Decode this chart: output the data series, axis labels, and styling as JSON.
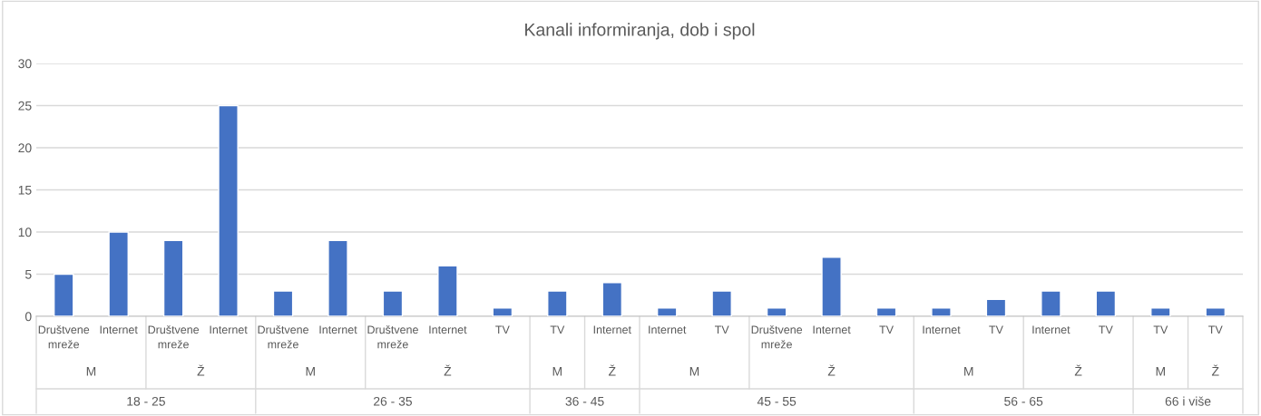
{
  "chart_data": {
    "type": "bar",
    "title": "Kanali informiranja, dob i spol",
    "categories": [
      "Društvene mreže",
      "Internet",
      "Društvene mreže",
      "Internet",
      "Društvene mreže",
      "Internet",
      "Društvene mreže",
      "Internet",
      "TV",
      "TV",
      "Internet",
      "Internet",
      "TV",
      "Društvene mreže",
      "Internet",
      "TV",
      "Internet",
      "TV",
      "Internet",
      "TV",
      "TV",
      "TV"
    ],
    "values": [
      5,
      10,
      9,
      25,
      3,
      9,
      3,
      6,
      1,
      3,
      4,
      1,
      3,
      1,
      7,
      1,
      1,
      2,
      3,
      3,
      1,
      1
    ],
    "color": "#4472c4",
    "ylim": [
      0,
      30
    ],
    "yticks": [
      0,
      5,
      10,
      15,
      20,
      25,
      30
    ],
    "grid": "y",
    "annotations": [
      "M",
      "Ž",
      "M",
      "Ž",
      "M",
      "Ž",
      "M",
      "Ž",
      "M",
      "Ž",
      "M",
      "Ž",
      "18 - 25",
      "26 - 35",
      "36 - 45",
      "45 - 55",
      "56 - 65",
      "66 i više"
    ]
  }
}
